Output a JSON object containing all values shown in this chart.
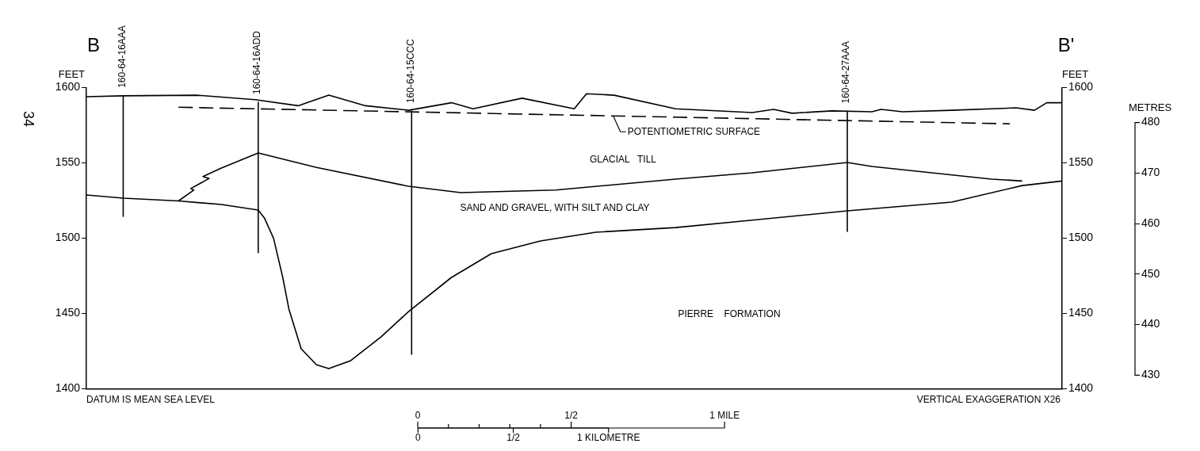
{
  "chart_data": {
    "type": "line",
    "ylabel": "FEET",
    "y2label": "FEET",
    "y3label": "METRES",
    "xlim": [
      -1.08,
      2.1
    ],
    "xticks": [
      0,
      {
        "value": 0.5,
        "label": "1/2"
      },
      {
        "value": 1,
        "label": "1 MILE"
      }
    ],
    "x2lim": [
      -1.74,
      3.38
    ],
    "x2ticks": [
      0,
      {
        "value": 0.5,
        "label": "1/2"
      },
      {
        "value": 1,
        "label": "1 KILOMETRE"
      }
    ],
    "ylim": [
      1400,
      1600
    ],
    "yticks": [
      1400,
      1450,
      1500,
      1550,
      1600
    ],
    "y2lim": [
      1400,
      1600
    ],
    "y2ticks": [
      1400,
      1450,
      1500,
      1550,
      1600
    ],
    "y3lim": [
      427.3,
      486.9
    ],
    "y3ticks": [
      430,
      440,
      450,
      460,
      470,
      480
    ],
    "grid": false,
    "legend": false,
    "marker": "none",
    "series": [
      {
        "color": "#000000",
        "x": [
          -1.08,
          -0.96,
          -0.72,
          -0.53,
          -0.39,
          -0.29,
          -0.17,
          -0.03,
          0.11,
          0.18,
          0.34,
          0.51,
          0.55,
          0.64,
          0.84,
          1.09,
          1.16,
          1.22,
          1.35,
          1.48,
          1.51,
          1.58,
          1.74,
          1.95,
          2.01,
          2.05,
          2.1
        ],
        "values": [
          1594,
          1594.6,
          1595,
          1592,
          1588,
          1595,
          1588,
          1585,
          1590,
          1586,
          1593,
          1586,
          1596,
          1595,
          1586,
          1583.5,
          1585.6,
          1583,
          1584.6,
          1584,
          1585.6,
          1584,
          1585,
          1586.6,
          1585,
          1590,
          1590
        ]
      },
      {
        "name": "POTENTIOMETRIC SURFACE",
        "color": "#000000",
        "line_style": "dashed",
        "x": [
          -0.78,
          1.93
        ],
        "values": [
          1587,
          1576
        ]
      },
      {
        "color": "#000000",
        "x": [
          -0.78,
          -0.73,
          -0.74,
          -0.68,
          -0.7,
          -0.64,
          -0.52,
          -0.33,
          -0.03,
          0.14,
          0.45,
          0.84,
          1.09,
          1.4,
          1.48,
          1.87,
          1.97
        ],
        "values": [
          1524.8,
          1532,
          1533,
          1539.7,
          1541,
          1546.6,
          1556.6,
          1547,
          1534.5,
          1530.3,
          1532,
          1539.3,
          1543.5,
          1550.3,
          1547.7,
          1539.3,
          1538
        ]
      },
      {
        "color": "#000000",
        "x": [
          -1.08,
          -0.96,
          -0.78,
          -0.64,
          -0.52,
          -0.5,
          -0.47,
          -0.44,
          -0.42,
          -0.38,
          -0.33,
          -0.29,
          -0.22,
          -0.12,
          -0.03,
          0.11,
          0.24,
          0.4,
          0.58,
          0.84,
          1.09,
          1.4,
          1.74,
          1.97,
          2.1
        ],
        "values": [
          1528.7,
          1526.6,
          1524.8,
          1522.4,
          1518.7,
          1513.5,
          1500,
          1474,
          1453,
          1426.6,
          1416,
          1413.5,
          1418.6,
          1434.5,
          1451.3,
          1474,
          1489.8,
          1498.2,
          1504,
          1507.1,
          1512,
          1518.2,
          1524,
          1535,
          1538
        ]
      },
      {
        "name": "160-64-16AAA",
        "color": "#000000",
        "x": [
          -0.96,
          -0.96
        ],
        "values": [
          1594.6,
          1514.5
        ]
      },
      {
        "name": "160-64-16ADD",
        "color": "#000000",
        "x": [
          -0.52,
          -0.52
        ],
        "values": [
          1590.3,
          1490.4
        ]
      },
      {
        "name": "160-64-15CCC",
        "color": "#000000",
        "x": [
          -0.02,
          -0.02
        ],
        "values": [
          1584.5,
          1423
        ]
      },
      {
        "name": "160-64-27AAA",
        "color": "#000000",
        "x": [
          1.4,
          1.4
        ],
        "values": [
          1584.2,
          1504.5
        ]
      }
    ],
    "annotations": [
      "B",
      "B'",
      "34",
      "GLACIAL   TILL",
      "SAND AND GRAVEL, WITH SILT AND CLAY",
      "PIERRE    FORMATION",
      "DATUM IS MEAN SEA LEVEL",
      "VERTICAL EXAGGERATION X26"
    ]
  }
}
